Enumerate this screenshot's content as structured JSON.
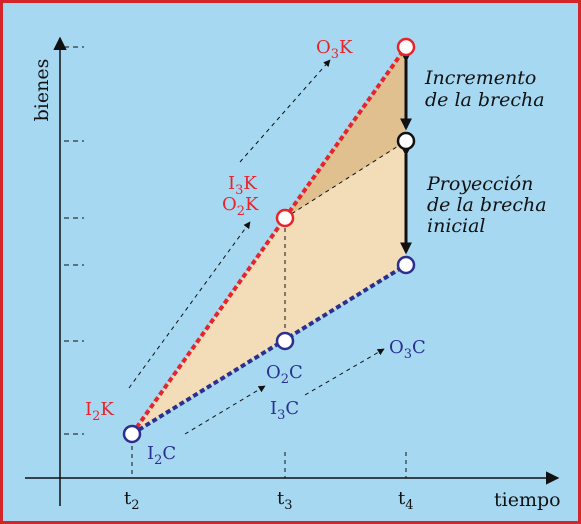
{
  "axes": {
    "y_label": "bienes",
    "x_label": "tiempo",
    "x_ticks": [
      {
        "main": "t",
        "sub": "2"
      },
      {
        "main": "t",
        "sub": "3"
      },
      {
        "main": "t",
        "sub": "4"
      }
    ]
  },
  "points": {
    "i2k": {
      "a": "I",
      "sub": "2",
      "b": "K"
    },
    "i3k": {
      "a": "I",
      "sub": "3",
      "b": "K"
    },
    "o2k": {
      "a": "O",
      "sub": "2",
      "b": "K"
    },
    "o3k": {
      "a": "O",
      "sub": "3",
      "b": "K"
    },
    "i2c": {
      "a": "I",
      "sub": "2",
      "b": "C"
    },
    "o2c": {
      "a": "O",
      "sub": "2",
      "b": "C"
    },
    "i3c": {
      "a": "I",
      "sub": "3",
      "b": "C"
    },
    "o3c": {
      "a": "O",
      "sub": "3",
      "b": "C"
    }
  },
  "annotations": {
    "incremento_line1": "Incremento",
    "incremento_line2": "de la brecha",
    "proyeccion_line1": "Proyección",
    "proyeccion_line2": "de la brecha",
    "proyeccion_line3": "inicial"
  },
  "colors": {
    "background": "#a6d8f2",
    "border": "#d3262b",
    "k_series": "#e8232a",
    "c_series": "#2b2f8f",
    "fill_light": "#f3dcb8",
    "fill_dark": "#dfc08e"
  }
}
